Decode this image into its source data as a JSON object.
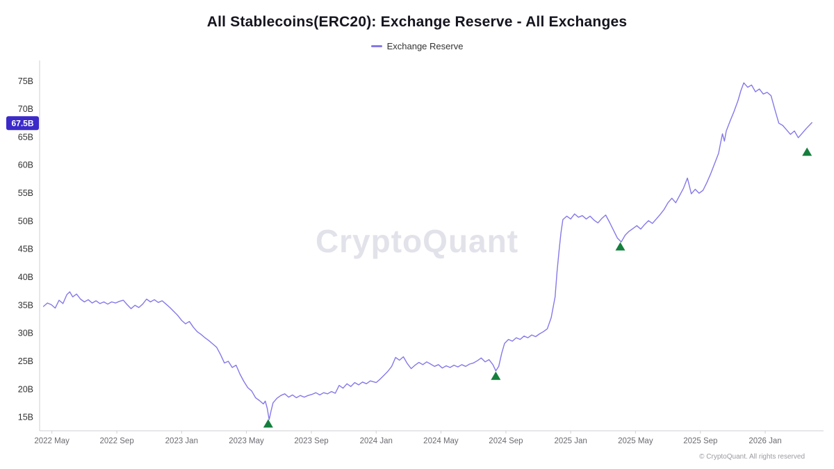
{
  "header": {
    "title": "All Stablecoins(ERC20): Exchange Reserve - All Exchanges"
  },
  "legend": {
    "items": [
      {
        "label": "Exchange Reserve",
        "color": "#8478e8"
      }
    ]
  },
  "watermark": {
    "text": "CryptoQuant"
  },
  "footer": {
    "text": "© CryptoQuant. All rights reserved"
  },
  "chart_data": {
    "type": "line",
    "title": "All Stablecoins(ERC20): Exchange Reserve - All Exchanges",
    "xlabel": "",
    "ylabel": "",
    "grid": false,
    "legend_position": "top",
    "y_axis": {
      "suffix": "B",
      "ticks": [
        15,
        20,
        25,
        30,
        35,
        40,
        45,
        50,
        55,
        60,
        65,
        70,
        75
      ],
      "lim": [
        12.6,
        77.7
      ]
    },
    "x_axis": {
      "lim": [
        2022.27,
        2026.3
      ],
      "ticks": [
        {
          "label": "2022 May",
          "t": 2022.333
        },
        {
          "label": "2022 Sep",
          "t": 2022.667
        },
        {
          "label": "2023 Jan",
          "t": 2023.0
        },
        {
          "label": "2023 May",
          "t": 2023.333
        },
        {
          "label": "2023 Sep",
          "t": 2023.667
        },
        {
          "label": "2024 Jan",
          "t": 2024.0
        },
        {
          "label": "2024 May",
          "t": 2024.333
        },
        {
          "label": "2024 Sep",
          "t": 2024.667
        },
        {
          "label": "2025 Jan",
          "t": 2025.0
        },
        {
          "label": "2025 May",
          "t": 2025.333
        },
        {
          "label": "2025 Sep",
          "t": 2025.667
        },
        {
          "label": "2026 Jan",
          "t": 2026.0
        }
      ]
    },
    "current_value": {
      "label": "67.5B",
      "value": 67.5,
      "bg": "#3b2ac9",
      "text_color": "#ffffff"
    },
    "markers": {
      "shape": "triangle-up",
      "color": "#157f3d",
      "points": [
        [
          2023.445,
          13.8
        ],
        [
          2024.615,
          22.3
        ],
        [
          2025.255,
          45.4
        ],
        [
          2026.215,
          62.3
        ]
      ]
    },
    "series": [
      {
        "name": "Exchange Reserve",
        "color": "#8478e8",
        "points": [
          [
            2022.29,
            34.8
          ],
          [
            2022.31,
            35.4
          ],
          [
            2022.33,
            35.1
          ],
          [
            2022.35,
            34.5
          ],
          [
            2022.37,
            35.9
          ],
          [
            2022.39,
            35.3
          ],
          [
            2022.41,
            36.9
          ],
          [
            2022.425,
            37.4
          ],
          [
            2022.44,
            36.5
          ],
          [
            2022.46,
            37.0
          ],
          [
            2022.48,
            36.1
          ],
          [
            2022.5,
            35.6
          ],
          [
            2022.52,
            36.0
          ],
          [
            2022.54,
            35.4
          ],
          [
            2022.56,
            35.8
          ],
          [
            2022.58,
            35.3
          ],
          [
            2022.6,
            35.6
          ],
          [
            2022.62,
            35.2
          ],
          [
            2022.64,
            35.6
          ],
          [
            2022.66,
            35.4
          ],
          [
            2022.68,
            35.7
          ],
          [
            2022.7,
            35.9
          ],
          [
            2022.72,
            35.1
          ],
          [
            2022.74,
            34.4
          ],
          [
            2022.76,
            35.0
          ],
          [
            2022.78,
            34.6
          ],
          [
            2022.8,
            35.2
          ],
          [
            2022.82,
            36.1
          ],
          [
            2022.84,
            35.6
          ],
          [
            2022.86,
            36.0
          ],
          [
            2022.88,
            35.5
          ],
          [
            2022.9,
            35.8
          ],
          [
            2022.92,
            35.2
          ],
          [
            2022.94,
            34.6
          ],
          [
            2022.96,
            33.9
          ],
          [
            2022.98,
            33.2
          ],
          [
            2023.0,
            32.3
          ],
          [
            2023.02,
            31.7
          ],
          [
            2023.04,
            32.1
          ],
          [
            2023.06,
            31.1
          ],
          [
            2023.08,
            30.3
          ],
          [
            2023.1,
            29.8
          ],
          [
            2023.12,
            29.2
          ],
          [
            2023.14,
            28.7
          ],
          [
            2023.16,
            28.1
          ],
          [
            2023.18,
            27.5
          ],
          [
            2023.2,
            26.2
          ],
          [
            2023.22,
            24.7
          ],
          [
            2023.24,
            25.0
          ],
          [
            2023.26,
            23.9
          ],
          [
            2023.28,
            24.3
          ],
          [
            2023.3,
            22.7
          ],
          [
            2023.32,
            21.4
          ],
          [
            2023.34,
            20.3
          ],
          [
            2023.36,
            19.7
          ],
          [
            2023.38,
            18.5
          ],
          [
            2023.4,
            18.0
          ],
          [
            2023.42,
            17.4
          ],
          [
            2023.43,
            17.9
          ],
          [
            2023.44,
            16.6
          ],
          [
            2023.45,
            14.6
          ],
          [
            2023.46,
            16.2
          ],
          [
            2023.47,
            17.6
          ],
          [
            2023.49,
            18.4
          ],
          [
            2023.51,
            18.9
          ],
          [
            2023.53,
            19.2
          ],
          [
            2023.55,
            18.6
          ],
          [
            2023.57,
            19.0
          ],
          [
            2023.59,
            18.5
          ],
          [
            2023.61,
            18.9
          ],
          [
            2023.63,
            18.6
          ],
          [
            2023.65,
            18.9
          ],
          [
            2023.67,
            19.1
          ],
          [
            2023.69,
            19.4
          ],
          [
            2023.71,
            19.0
          ],
          [
            2023.73,
            19.4
          ],
          [
            2023.75,
            19.2
          ],
          [
            2023.77,
            19.6
          ],
          [
            2023.79,
            19.3
          ],
          [
            2023.81,
            20.7
          ],
          [
            2023.83,
            20.2
          ],
          [
            2023.85,
            21.0
          ],
          [
            2023.87,
            20.5
          ],
          [
            2023.89,
            21.2
          ],
          [
            2023.91,
            20.8
          ],
          [
            2023.93,
            21.3
          ],
          [
            2023.95,
            21.0
          ],
          [
            2023.97,
            21.5
          ],
          [
            2024.0,
            21.2
          ],
          [
            2024.02,
            21.8
          ],
          [
            2024.04,
            22.5
          ],
          [
            2024.06,
            23.2
          ],
          [
            2024.08,
            24.1
          ],
          [
            2024.1,
            25.7
          ],
          [
            2024.12,
            25.2
          ],
          [
            2024.14,
            25.8
          ],
          [
            2024.16,
            24.6
          ],
          [
            2024.18,
            23.7
          ],
          [
            2024.2,
            24.3
          ],
          [
            2024.22,
            24.8
          ],
          [
            2024.24,
            24.4
          ],
          [
            2024.26,
            24.9
          ],
          [
            2024.28,
            24.5
          ],
          [
            2024.3,
            24.1
          ],
          [
            2024.32,
            24.4
          ],
          [
            2024.34,
            23.8
          ],
          [
            2024.36,
            24.2
          ],
          [
            2024.38,
            23.9
          ],
          [
            2024.4,
            24.3
          ],
          [
            2024.42,
            24.0
          ],
          [
            2024.44,
            24.4
          ],
          [
            2024.46,
            24.1
          ],
          [
            2024.48,
            24.5
          ],
          [
            2024.5,
            24.7
          ],
          [
            2024.52,
            25.1
          ],
          [
            2024.54,
            25.6
          ],
          [
            2024.56,
            24.9
          ],
          [
            2024.58,
            25.3
          ],
          [
            2024.6,
            24.4
          ],
          [
            2024.615,
            23.3
          ],
          [
            2024.63,
            24.1
          ],
          [
            2024.645,
            26.4
          ],
          [
            2024.66,
            28.2
          ],
          [
            2024.68,
            28.9
          ],
          [
            2024.7,
            28.6
          ],
          [
            2024.72,
            29.2
          ],
          [
            2024.74,
            28.9
          ],
          [
            2024.76,
            29.5
          ],
          [
            2024.78,
            29.2
          ],
          [
            2024.8,
            29.7
          ],
          [
            2024.82,
            29.4
          ],
          [
            2024.84,
            29.9
          ],
          [
            2024.86,
            30.3
          ],
          [
            2024.88,
            30.8
          ],
          [
            2024.9,
            32.8
          ],
          [
            2024.92,
            36.5
          ],
          [
            2024.93,
            41.0
          ],
          [
            2024.94,
            44.6
          ],
          [
            2024.95,
            47.9
          ],
          [
            2024.96,
            50.3
          ],
          [
            2024.98,
            50.9
          ],
          [
            2025.0,
            50.4
          ],
          [
            2025.02,
            51.3
          ],
          [
            2025.04,
            50.7
          ],
          [
            2025.06,
            51.0
          ],
          [
            2025.08,
            50.4
          ],
          [
            2025.1,
            50.9
          ],
          [
            2025.12,
            50.2
          ],
          [
            2025.14,
            49.7
          ],
          [
            2025.16,
            50.5
          ],
          [
            2025.18,
            51.1
          ],
          [
            2025.2,
            49.8
          ],
          [
            2025.22,
            48.4
          ],
          [
            2025.24,
            47.0
          ],
          [
            2025.26,
            46.3
          ],
          [
            2025.28,
            47.5
          ],
          [
            2025.3,
            48.2
          ],
          [
            2025.32,
            48.7
          ],
          [
            2025.34,
            49.2
          ],
          [
            2025.36,
            48.6
          ],
          [
            2025.38,
            49.4
          ],
          [
            2025.4,
            50.1
          ],
          [
            2025.42,
            49.6
          ],
          [
            2025.44,
            50.4
          ],
          [
            2025.46,
            51.2
          ],
          [
            2025.48,
            52.1
          ],
          [
            2025.5,
            53.3
          ],
          [
            2025.52,
            54.1
          ],
          [
            2025.54,
            53.3
          ],
          [
            2025.56,
            54.6
          ],
          [
            2025.58,
            55.9
          ],
          [
            2025.6,
            57.7
          ],
          [
            2025.61,
            56.3
          ],
          [
            2025.62,
            54.9
          ],
          [
            2025.64,
            55.7
          ],
          [
            2025.66,
            55.0
          ],
          [
            2025.68,
            55.5
          ],
          [
            2025.7,
            56.9
          ],
          [
            2025.72,
            58.5
          ],
          [
            2025.74,
            60.3
          ],
          [
            2025.76,
            62.1
          ],
          [
            2025.77,
            63.9
          ],
          [
            2025.78,
            65.6
          ],
          [
            2025.79,
            64.3
          ],
          [
            2025.8,
            66.1
          ],
          [
            2025.82,
            67.9
          ],
          [
            2025.84,
            69.6
          ],
          [
            2025.86,
            71.5
          ],
          [
            2025.875,
            73.3
          ],
          [
            2025.89,
            74.7
          ],
          [
            2025.91,
            73.9
          ],
          [
            2025.93,
            74.3
          ],
          [
            2025.95,
            73.1
          ],
          [
            2025.97,
            73.6
          ],
          [
            2025.99,
            72.7
          ],
          [
            2026.01,
            73.0
          ],
          [
            2026.03,
            72.4
          ],
          [
            2026.05,
            69.9
          ],
          [
            2026.07,
            67.5
          ],
          [
            2026.09,
            67.1
          ],
          [
            2026.11,
            66.3
          ],
          [
            2026.13,
            65.5
          ],
          [
            2026.15,
            66.1
          ],
          [
            2026.17,
            64.9
          ],
          [
            2026.19,
            65.7
          ],
          [
            2026.21,
            66.5
          ],
          [
            2026.24,
            67.6
          ]
        ]
      }
    ]
  }
}
